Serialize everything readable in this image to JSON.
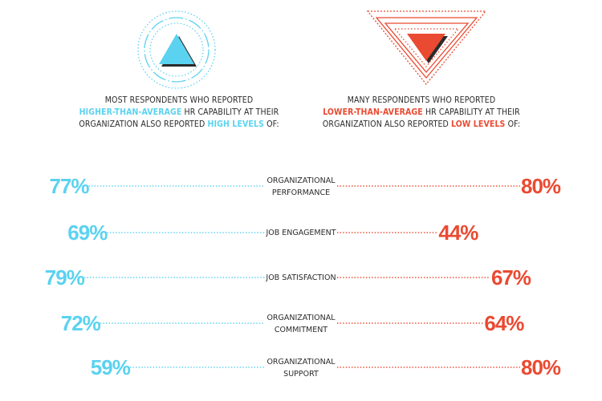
{
  "intro": {
    "left": {
      "line1": "MOST RESPONDENTS WHO REPORTED",
      "highlight1": "HIGHER-THAN-AVERAGE",
      "line2_rest": " HR CAPABILITY AT THEIR",
      "line3_start": "ORGANIZATION ALSO REPORTED ",
      "highlight2": "HIGH LEVELS",
      "line3_end": " OF:"
    },
    "right": {
      "line1": "MANY RESPONDENTS WHO REPORTED",
      "highlight1": "LOWER-THAN-AVERAGE",
      "line2_rest": " HR CAPABILITY AT THEIR",
      "line3_start": "ORGANIZATION ALSO REPORTED ",
      "highlight2": "LOW LEVELS",
      "line3_end": " OF:"
    }
  },
  "colors": {
    "left": "#5bd2f0",
    "right": "#ea4a31",
    "text": "#2b2b2b"
  },
  "icons": {
    "left": "triangle-up-icon",
    "right": "triangle-down-icon"
  },
  "chart_data": {
    "type": "bar",
    "categories": [
      [
        "ORGANIZATIONAL",
        "PERFORMANCE"
      ],
      [
        "JOB ENGAGEMENT"
      ],
      [
        "JOB SATISFACTION"
      ],
      [
        "ORGANIZATIONAL",
        "COMMITMENT"
      ],
      [
        "ORGANIZATIONAL",
        "SUPPORT"
      ]
    ],
    "series": [
      {
        "values": [
          77,
          69,
          79,
          72,
          59
        ],
        "labels": [
          "77%",
          "69%",
          "79%",
          "72%",
          "59%"
        ]
      },
      {
        "values": [
          80,
          44,
          67,
          64,
          80
        ],
        "labels": [
          "80%",
          "44%",
          "67%",
          "64%",
          "80%"
        ]
      }
    ],
    "unit": "%",
    "grid": false
  }
}
